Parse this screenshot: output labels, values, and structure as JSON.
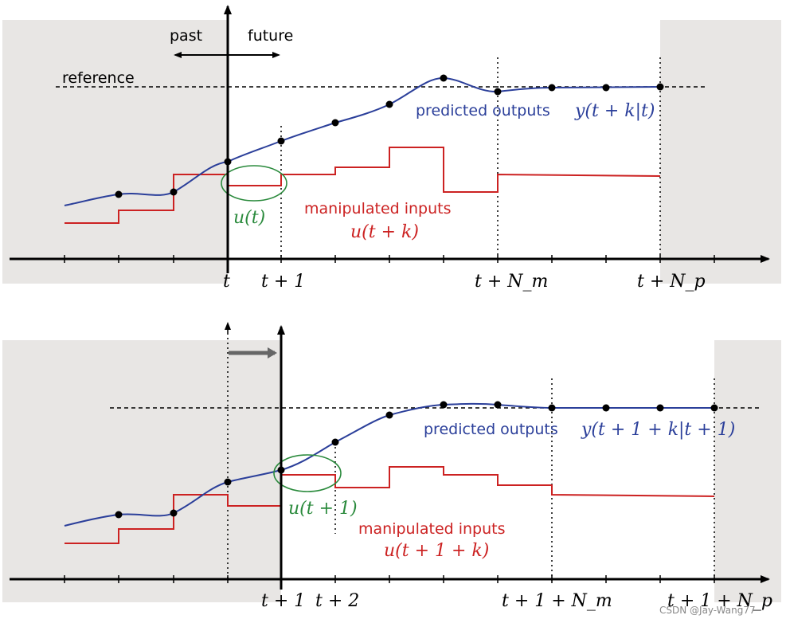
{
  "colors": {
    "background": "#ffffff",
    "shade": "#e8e6e4",
    "output": "#2b3f9a",
    "input": "#cc2222",
    "highlight": "#2a8a3c",
    "axis": "#000000",
    "shift_arrow": "#666666"
  },
  "top": {
    "past_label": "past",
    "future_label": "future",
    "reference_label": "reference",
    "predicted_label": "predicted outputs",
    "predicted_math": "y(t + k|t)",
    "manipulated_label": "manipulated inputs",
    "manipulated_math": "u(t + k)",
    "current_input_math": "u(t)",
    "ticks": [
      "t",
      "t + 1",
      "t + N_m",
      "t + N_p"
    ]
  },
  "bottom": {
    "predicted_label": "predicted outputs",
    "predicted_math": "y(t + 1 + k|t + 1)",
    "manipulated_label": "manipulated inputs",
    "manipulated_math": "u(t + 1 + k)",
    "current_input_math": "u(t + 1)",
    "ticks": [
      "t + 1",
      "t + 2",
      "t + 1 + N_m",
      "t + 1 + N_p"
    ]
  },
  "watermark": "CSDN @Jay-Wang77"
}
